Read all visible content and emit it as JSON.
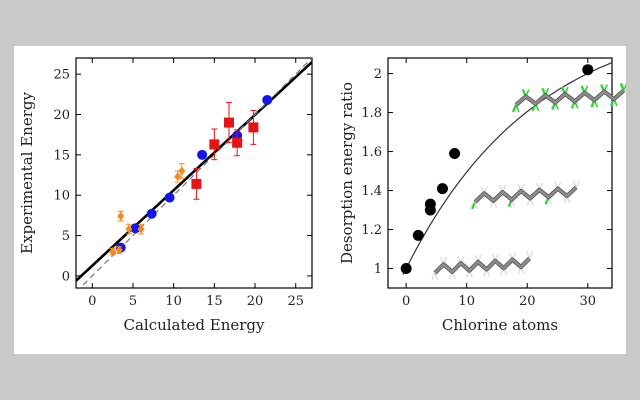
{
  "colors": {
    "background": "#c9c9c9",
    "panel": "#ffffff",
    "blue": "#1515e6",
    "red": "#e61414",
    "orange": "#f28c1e",
    "black": "#000000",
    "molecule_grey": "#8c8c8c",
    "chlorine_green": "#35d535"
  },
  "chart_data": [
    {
      "type": "scatter",
      "xlabel": "Calculated Energy",
      "ylabel": "Experimental Energy",
      "xlim": [
        -2,
        27
      ],
      "ylim": [
        -1.5,
        27
      ],
      "xticks": [
        0,
        5,
        10,
        15,
        20,
        25
      ],
      "yticks": [
        0,
        5,
        10,
        15,
        20,
        25
      ],
      "grid": false,
      "lines": [
        {
          "style": "solid",
          "color": "#000000",
          "from": [
            -2,
            -0.6
          ],
          "to": [
            27,
            26.5
          ]
        },
        {
          "style": "dashed",
          "color": "#777777",
          "from": [
            -2,
            -2
          ],
          "to": [
            27,
            27
          ]
        }
      ],
      "series": [
        {
          "marker": "circle",
          "color": "#1515e6",
          "points": [
            [
              3.5,
              3.5
            ],
            [
              5.3,
              5.9
            ],
            [
              7.3,
              7.7
            ],
            [
              9.5,
              9.7
            ],
            [
              13.5,
              15.0
            ],
            [
              17.8,
              17.4
            ],
            [
              21.5,
              21.8
            ]
          ]
        },
        {
          "marker": "diamond",
          "color": "#f28c1e",
          "points": [
            [
              2.5,
              3.0
            ],
            [
              3.3,
              3.2
            ],
            [
              3.5,
              7.4
            ],
            [
              4.5,
              5.8
            ],
            [
              6.0,
              5.8
            ],
            [
              10.5,
              12.3
            ],
            [
              11.0,
              13.0
            ]
          ],
          "errors": [
            0.4,
            0.4,
            0.6,
            0.6,
            0.6,
            0.7,
            0.9
          ]
        },
        {
          "marker": "square",
          "color": "#e61414",
          "points": [
            [
              12.8,
              11.4
            ],
            [
              15.0,
              16.3
            ],
            [
              16.8,
              19.0
            ],
            [
              17.8,
              16.5
            ],
            [
              19.8,
              18.4
            ]
          ],
          "errors": [
            1.9,
            1.9,
            2.5,
            1.6,
            2.1
          ]
        }
      ]
    },
    {
      "type": "scatter",
      "xlabel": "Chlorine atoms",
      "ylabel": "Desorption energy ratio",
      "xlim": [
        -3,
        34
      ],
      "ylim": [
        0.9,
        2.08
      ],
      "xticks": [
        0,
        10,
        20,
        30
      ],
      "yticks": [
        1,
        1.2,
        1.4,
        1.6,
        1.8,
        2
      ],
      "grid": false,
      "fit_curve": {
        "form": "saturating",
        "color": "#333333",
        "from_x": -0.5,
        "to_x": 34
      },
      "series": [
        {
          "marker": "circle",
          "color": "#000000",
          "points": [
            [
              0,
              1.0
            ],
            [
              2,
              1.17
            ],
            [
              4,
              1.3
            ],
            [
              4,
              1.33
            ],
            [
              6,
              1.41
            ],
            [
              8,
              1.59
            ],
            [
              30,
              2.02
            ]
          ]
        }
      ],
      "images": [
        {
          "name": "perchlorinated-chain",
          "chlorination": "full"
        },
        {
          "name": "partially-chlorinated-chain",
          "chlorination": "partial"
        },
        {
          "name": "unchlorinated-chain",
          "chlorination": "none"
        }
      ]
    }
  ]
}
